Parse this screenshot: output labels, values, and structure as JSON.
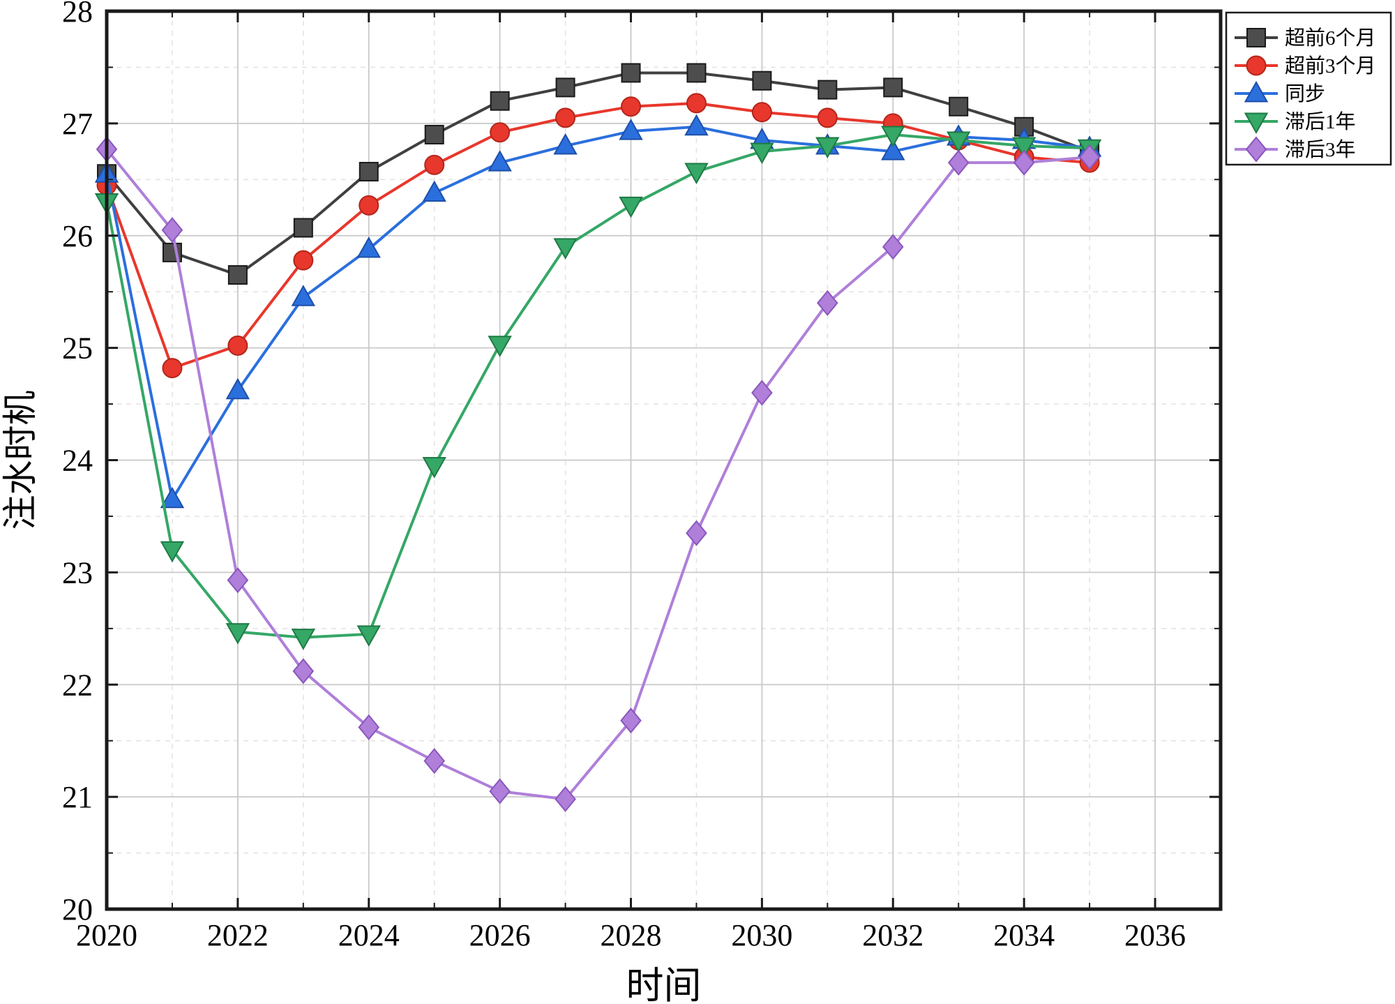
{
  "chart_data": {
    "type": "line",
    "title": "",
    "xlabel": "时间",
    "ylabel": "注水时机",
    "xlim": [
      2020,
      2037
    ],
    "ylim": [
      20,
      28
    ],
    "xticks": [
      2020,
      2022,
      2024,
      2026,
      2028,
      2030,
      2032,
      2034,
      2036
    ],
    "yticks": [
      20,
      21,
      22,
      23,
      24,
      25,
      26,
      27,
      28
    ],
    "x_minor_step": 1,
    "y_minor_step": 0.5,
    "grid": true,
    "legend_position": "top-right-outside",
    "axis_color": "#1a1a1a",
    "major_grid_color": "#c9c9c9",
    "minor_grid_color": "#e7e0e0",
    "x": [
      2020,
      2021,
      2022,
      2023,
      2024,
      2025,
      2026,
      2027,
      2028,
      2029,
      2030,
      2031,
      2032,
      2033,
      2034,
      2035
    ],
    "series": [
      {
        "name": "超前6个月",
        "marker": "square",
        "color": "#404040",
        "fill": "#4d4d4d",
        "edge": "#1a1a1a",
        "values": [
          26.55,
          25.85,
          25.65,
          26.07,
          26.57,
          26.9,
          27.2,
          27.32,
          27.45,
          27.45,
          27.38,
          27.3,
          27.32,
          27.15,
          26.97,
          26.75
        ]
      },
      {
        "name": "超前3个月",
        "marker": "circle",
        "color": "#e8372c",
        "fill": "#e8372c",
        "edge": "#b3261c",
        "values": [
          26.45,
          24.82,
          25.02,
          25.78,
          26.27,
          26.63,
          26.92,
          27.05,
          27.15,
          27.18,
          27.1,
          27.05,
          27.0,
          26.85,
          26.7,
          26.65
        ]
      },
      {
        "name": "同步",
        "marker": "triangle-up",
        "color": "#2b6fdd",
        "fill": "#2b6fdd",
        "edge": "#1d4fa8",
        "values": [
          26.55,
          23.65,
          24.62,
          25.45,
          25.88,
          26.38,
          26.65,
          26.8,
          26.93,
          26.97,
          26.85,
          26.8,
          26.75,
          26.88,
          26.85,
          26.78
        ]
      },
      {
        "name": "滞后1年",
        "marker": "triangle-down",
        "color": "#35a766",
        "fill": "#35a766",
        "edge": "#1e7a45",
        "values": [
          26.3,
          23.2,
          22.47,
          22.42,
          22.45,
          23.95,
          25.03,
          25.9,
          26.27,
          26.57,
          26.75,
          26.8,
          26.9,
          26.85,
          26.8,
          26.78
        ]
      },
      {
        "name": "滞后3年",
        "marker": "diamond",
        "color": "#af7fd9",
        "fill": "#af7fd9",
        "edge": "#8a56bd",
        "values": [
          26.77,
          26.05,
          22.93,
          22.12,
          21.62,
          21.32,
          21.05,
          20.98,
          21.68,
          23.35,
          24.6,
          25.4,
          25.9,
          26.65,
          26.65,
          26.7
        ]
      }
    ]
  }
}
